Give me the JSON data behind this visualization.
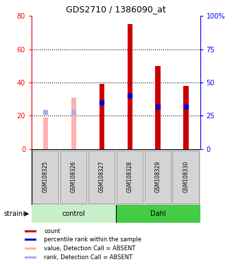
{
  "title": "GDS2710 / 1386090_at",
  "samples": [
    "GSM108325",
    "GSM108326",
    "GSM108327",
    "GSM108328",
    "GSM108329",
    "GSM108330"
  ],
  "groups": [
    "control",
    "control",
    "control",
    "Dahl",
    "Dahl",
    "Dahl"
  ],
  "count_values": [
    19,
    31,
    39,
    75,
    50,
    38
  ],
  "rank_values": [
    28,
    28,
    35,
    40,
    32,
    32
  ],
  "is_absent": [
    true,
    true,
    false,
    false,
    false,
    false
  ],
  "count_color": "#cc0000",
  "rank_color": "#0000cc",
  "absent_count_color": "#ffb0b0",
  "absent_rank_color": "#aaaaee",
  "ylim_left": [
    0,
    80
  ],
  "ylim_right": [
    0,
    100
  ],
  "yticks_left": [
    0,
    20,
    40,
    60,
    80
  ],
  "yticks_right": [
    0,
    25,
    50,
    75,
    100
  ],
  "ytick_labels_right": [
    "0",
    "25",
    "50",
    "75",
    "100%"
  ],
  "bar_width": 0.18,
  "rank_marker_size": 4.5,
  "control_bg": "#c8f0c8",
  "dahl_bg": "#44cc44",
  "legend_items": [
    {
      "color": "#cc0000",
      "label": "count"
    },
    {
      "color": "#0000cc",
      "label": "percentile rank within the sample"
    },
    {
      "color": "#ffb0b0",
      "label": "value, Detection Call = ABSENT"
    },
    {
      "color": "#aaaaee",
      "label": "rank, Detection Call = ABSENT"
    }
  ]
}
